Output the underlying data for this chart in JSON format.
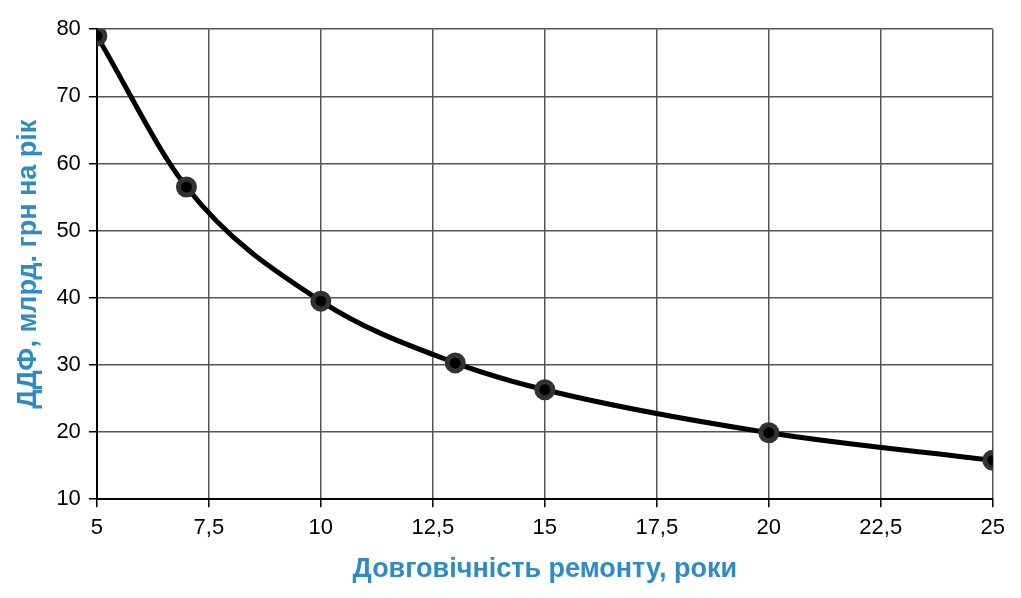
{
  "chart_data": {
    "type": "line",
    "xlabel": "Довговічність ремонту, роки",
    "ylabel": "ДДФ, млрд. грн на рік",
    "x": [
      5,
      7,
      10,
      13,
      15,
      20,
      25
    ],
    "series": [
      {
        "color": "#000000",
        "values": [
          79,
          56.5,
          39.5,
          30.3,
          26.3,
          19.9,
          15.8
        ]
      }
    ],
    "xlim": [
      5,
      25
    ],
    "xticks": [
      5,
      {
        "value": 7.5,
        "label": "7,5"
      },
      10,
      {
        "value": 12.5,
        "label": "12,5"
      },
      15,
      {
        "value": 17.5,
        "label": "17,5"
      },
      20,
      {
        "value": 22.5,
        "label": "22,5"
      },
      25
    ],
    "ylim": [
      10,
      80
    ],
    "yticks": [
      10,
      20,
      30,
      40,
      50,
      60,
      70,
      80
    ],
    "grid": true,
    "legend": false,
    "marker": "circle",
    "line_style": "solid"
  }
}
